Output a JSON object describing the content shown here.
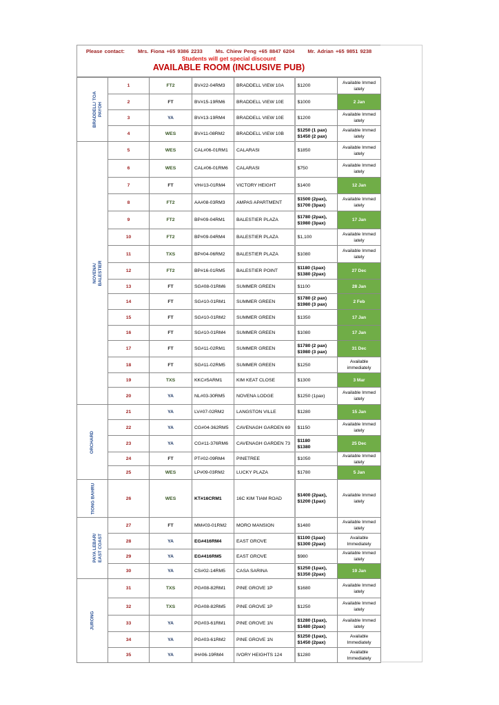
{
  "header": {
    "contact_label": "Please contact:",
    "contacts": [
      "Mrs. Fiona +65 9386 2233",
      "Ms. Chiew Peng +65 8847 6204",
      "Mr. Adrian +65 9851 9238"
    ],
    "discount": "Students will get special discount",
    "title": "AVAILABLE ROOM (INCLUSIVE PUB)"
  },
  "colors": {
    "available_date_bg": "#70ad47",
    "number": "#9b1c1c",
    "region": "#2f5597",
    "title": "#c00000"
  },
  "regions": [
    {
      "name": "BRADDELL/ TOA PAYOH",
      "rows": [
        {
          "no": "1",
          "type": "FT2",
          "code": "BV#22-04RM3",
          "name": "BRADDELL VIEW 10A",
          "price": [
            "$1200"
          ],
          "status": "Available Immed iately",
          "green": false
        },
        {
          "no": "2",
          "type": "FT",
          "code": "BV#15-19RM6",
          "name": "BRADDELL VIEW 10E",
          "price": [
            "$1000"
          ],
          "status": "2 Jan",
          "green": true
        },
        {
          "no": "3",
          "type": "YA",
          "code": "BV#13-19RM4",
          "name": "BRADDELL VIEW 10E",
          "price": [
            "$1200"
          ],
          "status": "Available Immed iately",
          "green": false
        },
        {
          "no": "4",
          "type": "WES",
          "code": "BV#11-08RM2",
          "name": "BRADDELL VIEW 10B",
          "price": [
            "$1250 (1 pax)",
            "$1450 (2 pax)"
          ],
          "status": "Available Immed iately",
          "green": false
        }
      ]
    },
    {
      "name": "NOVENA/ BALESTIER",
      "rows": [
        {
          "no": "5",
          "type": "WES",
          "code": "CAL#06-01RM1",
          "name": "CALARASI",
          "price": [
            "$1850"
          ],
          "status": "Available Immed iately",
          "green": false
        },
        {
          "no": "6",
          "type": "WES",
          "code": "CAL#06-01RM6",
          "name": "CALARASI",
          "price": [
            "$750"
          ],
          "status": "Available Immed iately",
          "green": false
        },
        {
          "no": "7",
          "type": "FT",
          "code": "VH#13-01RM4",
          "name": "VICTORY HEIGHT",
          "price": [
            "$1400"
          ],
          "status": "12 Jan",
          "green": true
        },
        {
          "no": "8",
          "type": "FT2",
          "code": "AA#08-03RM3",
          "name": "AMPAS APARTMENT",
          "price": [
            "$1500 (2pax),",
            "$1700 (3pax)"
          ],
          "status": "Available Immed iately",
          "green": false
        },
        {
          "no": "9",
          "type": "FT2",
          "code": "BP#09-04RM1",
          "name": "BALESTIER PLAZA",
          "price": [
            "$1780 (2pax),",
            "$1980 (3pax)"
          ],
          "status": "17 Jan",
          "green": true
        },
        {
          "no": "10",
          "type": "FT2",
          "code": "BP#09-04RM4",
          "name": "BALESTIER PLAZA",
          "price": [
            "$1,100"
          ],
          "status": "Available Immed iately",
          "green": false
        },
        {
          "no": "11",
          "type": "TXS",
          "code": "BP#04-06RM2",
          "name": "BALESTIER PLAZA",
          "price": [
            "$1080"
          ],
          "status": "Available Immed iately",
          "green": false
        },
        {
          "no": "12",
          "type": "FT2",
          "code": "BP#16-01RM5",
          "name": "BALESTIER POINT",
          "price": [
            "$1180 (1pax)",
            "$1380 (2pax)"
          ],
          "status": "27 Dec",
          "green": true
        },
        {
          "no": "13",
          "type": "FT",
          "code": "SG#08-01RM6",
          "name": "SUMMER GREEN",
          "price": [
            "$1100"
          ],
          "status": "28 Jan",
          "green": true
        },
        {
          "no": "14",
          "type": "FT",
          "code": "SG#10-01RM1",
          "name": "SUMMER GREEN",
          "price": [
            "$1780 (2 pax)",
            "$1980 (3 pax)"
          ],
          "status": "2 Feb",
          "green": true
        },
        {
          "no": "15",
          "type": "FT",
          "code": "SG#10-01RM2",
          "name": "SUMMER GREEN",
          "price": [
            "$1350"
          ],
          "status": "17 Jan",
          "green": true
        },
        {
          "no": "16",
          "type": "FT",
          "code": "SG#10-01RM4",
          "name": "SUMMER GREEN",
          "price": [
            "$1080"
          ],
          "status": "17 Jan",
          "green": true
        },
        {
          "no": "17",
          "type": "FT",
          "code": "SG#11-02RM1",
          "name": "SUMMER GREEN",
          "price": [
            "$1780 (2 pax)",
            "$1980 (3 pax)"
          ],
          "status": "31 Dec",
          "green": true
        },
        {
          "no": "18",
          "type": "FT",
          "code": "SG#11-02RM5",
          "name": "SUMMER GREEN",
          "price": [
            "$1250"
          ],
          "status": "Available immediately",
          "green": false
        },
        {
          "no": "19",
          "type": "TXS",
          "code": "KKC#5ARM1",
          "name": "KIM KEAT CLOSE",
          "price": [
            "$1300"
          ],
          "status": "3 Mar",
          "green": true
        },
        {
          "no": "20",
          "type": "YA",
          "code": "NL#03-30RM5",
          "name": "NOVENA LODGE",
          "price": [
            "$1250 (1pax)"
          ],
          "status": "Available Immed iately",
          "green": false
        }
      ]
    },
    {
      "name": "ORCHARD",
      "rows": [
        {
          "no": "21",
          "type": "YA",
          "code": "LV#07-02RM2",
          "name": "LANGSTON VILLE",
          "price": [
            "$1280"
          ],
          "status": "15 Jan",
          "green": true
        },
        {
          "no": "22",
          "type": "YA",
          "code": "CG#04-362RM5",
          "name": "CAVENAGH GARDEN 69",
          "price": [
            "$1150"
          ],
          "status": "Available Immed iately",
          "green": false
        },
        {
          "no": "23",
          "type": "YA",
          "code": "CG#11-376RM6",
          "name": "CAVENAGH GARDEN 73",
          "price": [
            "$1180",
            "$1380"
          ],
          "status": "25 Dec",
          "green": true
        },
        {
          "no": "24",
          "type": "FT",
          "code": "PT#02-09RM4",
          "name": "PINETREE",
          "price": [
            "$1050"
          ],
          "status": "Available Immed iately",
          "green": false
        },
        {
          "no": "25",
          "type": "WES",
          "code": "LP#09-03RM2",
          "name": "LUCKY PLAZA",
          "price": [
            "$1780"
          ],
          "status": "5 Jan",
          "green": true
        }
      ]
    },
    {
      "name": "TIONG BAHRU",
      "rows": [
        {
          "no": "26",
          "type": "WES",
          "code": "KT#16CRM1",
          "code_bold": true,
          "name": "16C KIM TIAM ROAD",
          "price": [
            "$1400 (2pax),",
            "$1200 (1pax)"
          ],
          "status": "Available Immed iately",
          "green": false
        }
      ]
    },
    {
      "name": "PAYA LEBAR/ EAST COAST",
      "rows": [
        {
          "no": "27",
          "type": "FT",
          "code": "MM#03-01RM2",
          "name": "MORO MANSION",
          "price": [
            "$1480"
          ],
          "status": "Available Immed iately",
          "green": false
        },
        {
          "no": "28",
          "type": "YA",
          "code": "EG#416RM4",
          "code_bold": true,
          "name": "EAST GROVE",
          "price": [
            "$1100 (1pax)",
            "$1300 (2pax)"
          ],
          "status": "Available Immediately",
          "green": false
        },
        {
          "no": "29",
          "type": "YA",
          "code": "EG#416RM5",
          "code_bold": true,
          "name": "EAST GROVE",
          "price": [
            "$980"
          ],
          "status": "Available Immed iately",
          "green": false
        },
        {
          "no": "30",
          "type": "YA",
          "code": "CS#02-14RM5",
          "name": "CASA SARINA",
          "price": [
            "$1250 (1pax),",
            "$1350 (2pax)"
          ],
          "status": "19 Jan",
          "green": true
        }
      ]
    },
    {
      "name": "JURONG",
      "rows": [
        {
          "no": "31",
          "type": "TXS",
          "code": "PG#08-82RM1",
          "name": "PINE GROVE 1P",
          "price": [
            "$1680"
          ],
          "status": "Available Immed iately",
          "green": false
        },
        {
          "no": "32",
          "type": "TXS",
          "code": "PG#08-82RM5",
          "name": "PINE GROVE 1P",
          "price": [
            "$1250"
          ],
          "status": "Available Immed iately",
          "green": false
        },
        {
          "no": "33",
          "type": "YA",
          "code": "PG#03-61RM1",
          "name": "PINE GROVE 1N",
          "price": [
            "$1280 (1pax),",
            "$1480 (2pax)"
          ],
          "status": "Available Immed iately",
          "green": false
        },
        {
          "no": "34",
          "type": "YA",
          "code": "PG#03-61RM2",
          "name": "PINE GROVE 1N",
          "price": [
            "$1250 (1pax),",
            "$1450 (2pax)"
          ],
          "status": "Available Immediately",
          "green": false
        },
        {
          "no": "35",
          "type": "YA",
          "code": "IH#06-19RM4",
          "name": "IVORY HEIGHTS 124",
          "price": [
            "$1280"
          ],
          "status": "Available Immediately",
          "green": false
        }
      ]
    }
  ]
}
